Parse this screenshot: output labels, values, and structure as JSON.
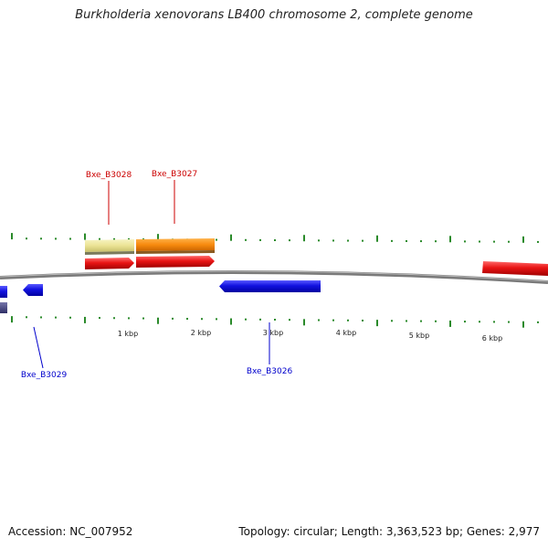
{
  "title": "Burkholderia xenovorans LB400 chromosome 2, complete genome",
  "accession_text": "Accession: NC_007952",
  "summary_text": "Topology: circular; Length: 3,363,523 bp; Genes: 2,977",
  "colors": {
    "forward_gene": "#e01010",
    "reverse_gene": "#1010dd",
    "tick": "#2a8a2a",
    "backbone": "#7a7a7a",
    "label_forward": "#cc0000",
    "label_reverse": "#0000cc",
    "yellow_feature": "#ece79a",
    "orange_feature": "#f58a10",
    "navy_feature": "#44447a"
  },
  "scale": {
    "unit": "kbp",
    "labels": [
      "1 kbp",
      "2 kbp",
      "3 kbp",
      "4 kbp",
      "5 kbp",
      "6 kbp"
    ]
  },
  "genes": [
    {
      "id": "Bxe_B3029",
      "strand": "reverse",
      "label": "Bxe_B3029"
    },
    {
      "id": "Bxe_B3028",
      "strand": "forward",
      "label": "Bxe_B3028"
    },
    {
      "id": "Bxe_B3027",
      "strand": "forward",
      "label": "Bxe_B3027"
    },
    {
      "id": "Bxe_B3026",
      "strand": "reverse",
      "label": "Bxe_B3026"
    }
  ]
}
